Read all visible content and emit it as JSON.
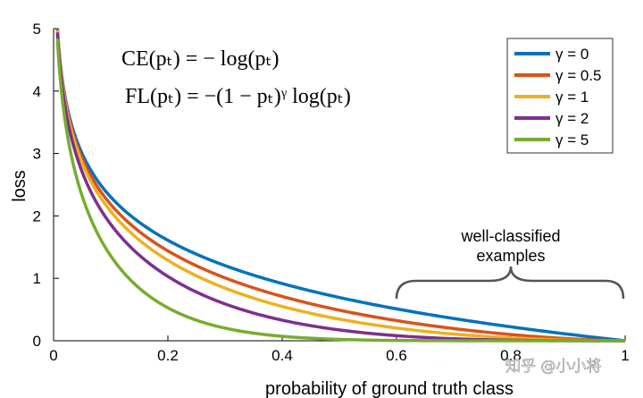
{
  "chart_data": {
    "type": "line",
    "xlabel": "probability of ground truth class",
    "ylabel": "loss",
    "xlim": [
      0,
      1
    ],
    "ylim": [
      0,
      5
    ],
    "x_ticks": [
      "0",
      "0.2",
      "0.4",
      "0.6",
      "0.8",
      "1"
    ],
    "y_ticks": [
      "0",
      "1",
      "2",
      "3",
      "4",
      "5"
    ],
    "grid": false,
    "legend_position": "top-right",
    "formulas": [
      "CE(pₜ) = − log(pₜ)",
      "FL(pₜ) = −(1 − pₜ)ᵞ log(pₜ)"
    ],
    "annotation": {
      "lines": [
        "well-classified",
        "examples"
      ],
      "x_range": [
        0.6,
        1.0
      ]
    },
    "x": [
      0.01,
      0.02,
      0.05,
      0.1,
      0.15,
      0.2,
      0.3,
      0.4,
      0.5,
      0.6,
      0.7,
      0.8,
      0.9,
      1.0
    ],
    "series": [
      {
        "name": "γ = 0",
        "gamma": 0,
        "color": "#0072BD",
        "values": [
          4.61,
          3.91,
          3.0,
          2.3,
          1.9,
          1.61,
          1.2,
          0.92,
          0.69,
          0.51,
          0.36,
          0.22,
          0.11,
          0.0
        ]
      },
      {
        "name": "γ = 0.5",
        "gamma": 0.5,
        "color": "#D95319",
        "values": [
          4.58,
          3.87,
          2.92,
          2.18,
          1.75,
          1.44,
          1.01,
          0.71,
          0.49,
          0.32,
          0.2,
          0.1,
          0.03,
          0.0
        ]
      },
      {
        "name": "γ = 1",
        "gamma": 1,
        "color": "#EDB120",
        "values": [
          4.56,
          3.83,
          2.85,
          2.07,
          1.61,
          1.29,
          0.84,
          0.55,
          0.35,
          0.2,
          0.11,
          0.04,
          0.01,
          0.0
        ]
      },
      {
        "name": "γ = 2",
        "gamma": 2,
        "color": "#7E2F8E",
        "values": [
          4.51,
          3.76,
          2.7,
          1.86,
          1.37,
          1.03,
          0.59,
          0.33,
          0.17,
          0.08,
          0.03,
          0.01,
          0.0,
          0.0
        ]
      },
      {
        "name": "γ = 5",
        "gamma": 5,
        "color": "#77AC30",
        "values": [
          4.38,
          3.54,
          2.32,
          1.36,
          0.84,
          0.53,
          0.2,
          0.07,
          0.02,
          0.01,
          0.0,
          0.0,
          0.0,
          0.0
        ]
      }
    ]
  },
  "watermark": "知乎 @小小将"
}
